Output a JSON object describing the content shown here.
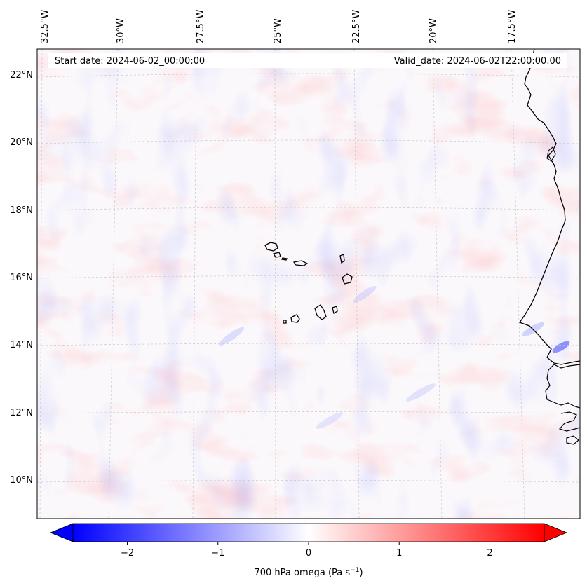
{
  "header": {
    "start_date": "Start date: 2024-06-02_00:00:00",
    "valid_date": "Valid_date: 2024-06-02T22:00:00.00"
  },
  "longitude_labels": [
    "32.5°W",
    "30°W",
    "27.5°W",
    "25°W",
    "22.5°W",
    "20°W",
    "17.5°W"
  ],
  "latitude_labels": [
    "22°N",
    "20°N",
    "18°N",
    "16°N",
    "14°N",
    "12°N",
    "10°N"
  ],
  "colorbar": {
    "ticks": [
      -2,
      -1,
      0,
      1,
      2
    ],
    "tick_labels": [
      "−2",
      "−1",
      "0",
      "1",
      "2"
    ],
    "range": [
      -2.6,
      2.6
    ],
    "label_main": "700 hPa omega (Pa s",
    "label_sup": "−1",
    "label_end": ")",
    "colormap": "bwr",
    "low_color": "#0000ff",
    "mid_color": "#ffffff",
    "high_color": "#ff0000"
  },
  "map": {
    "land_outline_color": "#000000",
    "gridline_color": "#bbbbbb"
  }
}
